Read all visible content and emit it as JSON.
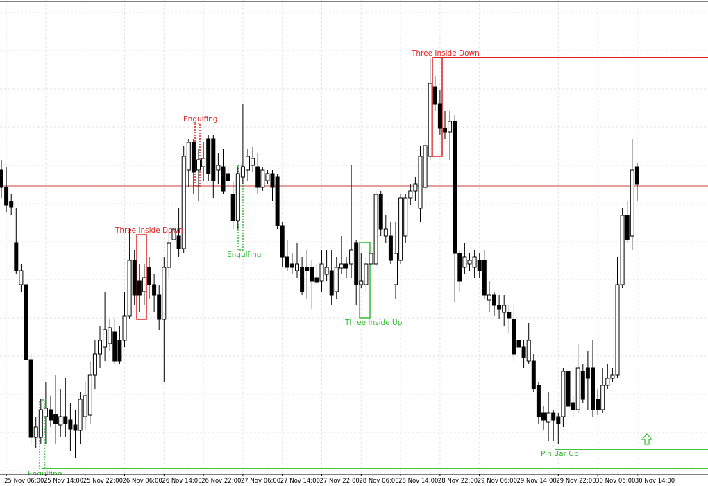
{
  "chart_data": {
    "type": "candlestick",
    "categories": [
      null,
      "25 Nov 06:00",
      null,
      null,
      null,
      null,
      null,
      null,
      null,
      "25 Nov 14:00",
      null,
      null,
      null,
      null,
      null,
      null,
      null,
      "25 Nov 22:00",
      null,
      null,
      null,
      null,
      null,
      null,
      null,
      "26 Nov 06:00",
      null,
      null,
      null,
      null,
      null,
      null,
      null,
      "26 Nov 14:00",
      null,
      null,
      null,
      null,
      null,
      null,
      null,
      "26 Nov 22:00",
      null,
      null,
      null,
      null,
      null,
      null,
      null,
      "27 Nov 06:00",
      null,
      null,
      null,
      null,
      null,
      null,
      null,
      "27 Nov 14:00",
      null,
      null,
      null,
      null,
      null,
      null,
      null,
      "27 Nov 22:00",
      null,
      null,
      null,
      null,
      null,
      null,
      null,
      "28 Nov 06:00",
      null,
      null,
      null,
      null,
      null,
      null,
      null,
      "28 Nov 14:00",
      null,
      null,
      null,
      null,
      null,
      null,
      null,
      "28 Nov 22:00",
      null,
      null,
      null,
      null,
      null,
      null,
      null,
      "29 Nov 06:00",
      null,
      null,
      null,
      null,
      null,
      null,
      null,
      "29 Nov 14:00",
      null,
      null,
      null,
      null,
      null,
      null,
      null,
      "29 Nov 22:00",
      null,
      null,
      null,
      null,
      null,
      null,
      null,
      "30 Nov 06:00",
      null,
      null,
      null,
      null,
      null,
      null,
      null,
      "30 Nov 14:00"
    ],
    "open": [
      455,
      430,
      410,
      350,
      290,
      290,
      182,
      70,
      70,
      100,
      110,
      103,
      88,
      100,
      95,
      88,
      80,
      100,
      102,
      160,
      190,
      200,
      205,
      222,
      210,
      210,
      245,
      325,
      295,
      280,
      315,
      290,
      275,
      240,
      315,
      355,
      360,
      342,
      455,
      495,
      455,
      460,
      500,
      500,
      455,
      460,
      450,
      420,
      382,
      445,
      455,
      462,
      460,
      430,
      440,
      450,
      445,
      375,
      330,
      320,
      310,
      315,
      315,
      315,
      300,
      295,
      305,
      310,
      280,
      314,
      320,
      320,
      350,
      290,
      290,
      320,
      320,
      420,
      360,
      360,
      290,
      325,
      360,
      415,
      425,
      400,
      430,
      475,
      575,
      550,
      515,
      510,
      525,
      335,
      315,
      320,
      315,
      325,
      325,
      268,
      275,
      260,
      250,
      250,
      240,
      210,
      200,
      180,
      180,
      145,
      105,
      92,
      105,
      100,
      100,
      165,
      120,
      110,
      165,
      170,
      170,
      125,
      110,
      145,
      155,
      160,
      290,
      390,
      360,
      460
    ],
    "high": [
      470,
      460,
      420,
      400,
      320,
      300,
      190,
      100,
      125,
      150,
      130,
      160,
      140,
      155,
      120,
      110,
      135,
      150,
      180,
      210,
      230,
      280,
      240,
      240,
      230,
      280,
      370,
      340,
      320,
      320,
      330,
      305,
      290,
      330,
      370,
      405,
      400,
      490,
      500,
      500,
      485,
      495,
      505,
      505,
      480,
      485,
      460,
      440,
      460,
      550,
      485,
      488,
      480,
      460,
      455,
      455,
      450,
      380,
      355,
      335,
      350,
      330,
      340,
      325,
      320,
      340,
      340,
      340,
      330,
      360,
      330,
      462,
      355,
      335,
      330,
      360,
      425,
      425,
      390,
      380,
      380,
      420,
      420,
      435,
      445,
      490,
      495,
      617,
      590,
      570,
      540,
      540,
      535,
      340,
      350,
      335,
      340,
      335,
      340,
      295,
      280,
      275,
      275,
      260,
      260,
      220,
      210,
      235,
      190,
      150,
      115,
      135,
      110,
      105,
      170,
      170,
      130,
      205,
      175,
      195,
      210,
      140,
      170,
      175,
      170,
      330,
      400,
      410,
      500,
      465
    ],
    "low": [
      415,
      395,
      390,
      305,
      280,
      175,
      60,
      55,
      60,
      60,
      85,
      60,
      70,
      70,
      50,
      40,
      60,
      80,
      90,
      140,
      170,
      180,
      195,
      175,
      175,
      200,
      240,
      260,
      250,
      260,
      270,
      250,
      225,
      150,
      300,
      310,
      330,
      335,
      430,
      420,
      410,
      440,
      440,
      415,
      435,
      420,
      430,
      370,
      370,
      435,
      440,
      452,
      420,
      425,
      435,
      410,
      370,
      315,
      310,
      305,
      300,
      275,
      270,
      255,
      290,
      280,
      295,
      260,
      270,
      305,
      300,
      300,
      260,
      285,
      280,
      310,
      315,
      360,
      350,
      320,
      270,
      320,
      350,
      405,
      410,
      380,
      425,
      470,
      540,
      505,
      500,
      470,
      265,
      280,
      305,
      310,
      300,
      300,
      270,
      250,
      245,
      240,
      230,
      220,
      180,
      185,
      170,
      175,
      135,
      90,
      80,
      65,
      65,
      60,
      85,
      100,
      100,
      105,
      120,
      110,
      100,
      102,
      105,
      140,
      150,
      155,
      285,
      350,
      340,
      410
    ],
    "close": [
      430,
      405,
      402,
      310,
      310,
      182,
      70,
      85,
      110,
      112,
      95,
      90,
      100,
      90,
      82,
      80,
      125,
      130,
      160,
      190,
      210,
      225,
      228,
      180,
      180,
      245,
      325,
      275,
      275,
      300,
      290,
      275,
      240,
      315,
      350,
      370,
      342,
      475,
      495,
      452,
      470,
      472,
      450,
      440,
      462,
      425,
      440,
      382,
      450,
      460,
      475,
      472,
      430,
      455,
      450,
      430,
      375,
      330,
      315,
      315,
      320,
      280,
      310,
      295,
      294,
      320,
      315,
      275,
      315,
      320,
      314,
      340,
      290,
      295,
      320,
      335,
      420,
      370,
      370,
      325,
      335,
      415,
      415,
      425,
      435,
      475,
      490,
      580,
      550,
      515,
      510,
      525,
      335,
      295,
      330,
      325,
      330,
      310,
      275,
      275,
      260,
      255,
      260,
      242,
      190,
      200,
      185,
      210,
      140,
      100,
      95,
      105,
      95,
      90,
      165,
      115,
      110,
      170,
      125,
      155,
      110,
      110,
      145,
      155,
      160,
      290,
      390,
      355,
      455,
      435
    ],
    "ylim": [
      17,
      700
    ],
    "grid": true,
    "up_color": "#ffffff",
    "down_color": "#000000",
    "price_line": {
      "value": 432,
      "color": "#c83c3c"
    },
    "levels": [
      {
        "value": 617,
        "color": "#dd1f1f"
      },
      {
        "value": 53,
        "color": "#3cc43c"
      },
      {
        "value": 25,
        "color": "#3cc43c"
      }
    ],
    "annotations": [
      {
        "text": "Three Inside Down",
        "color": "#e02424"
      },
      {
        "text": "Engulfing",
        "color": "#e02424"
      },
      {
        "text": "Engulfing",
        "color": "#33bb33"
      },
      {
        "text": "Three Inside Up",
        "color": "#33bb33"
      },
      {
        "text": "Three Inside Down",
        "color": "#e02424"
      },
      {
        "text": "Pin Bar Up",
        "color": "#33bb33"
      },
      {
        "text": "Engulfing",
        "color": "#33bb33"
      }
    ]
  }
}
